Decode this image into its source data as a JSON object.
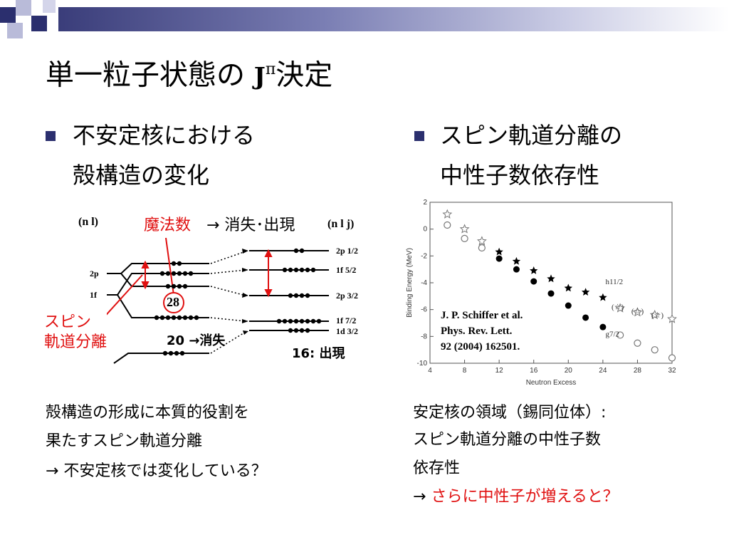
{
  "slide": {
    "title_main": "単一粒子状態の",
    "title_j": "J",
    "title_pi": "π",
    "title_tail": "決定"
  },
  "left": {
    "bullet_line1": "不安定核における",
    "bullet_line2": "殻構造の変化",
    "body_line1": "殻構造の形成に本質的役割を",
    "body_line2": "果たすスピン軌道分離",
    "body_line3": "→ 不安定核では変化している？"
  },
  "right": {
    "bullet_line1": "スピン軌道分離の",
    "bullet_line2": "中性子数依存性",
    "body_line1": "安定核の領域（錫同位体）:",
    "body_line2": "スピン軌道分離の中性子数",
    "body_line3": "依存性",
    "body_line4_arrow": "→ ",
    "body_line4_red": "さらに中性子が増えると？"
  },
  "diagram": {
    "nl_label": "(n l)",
    "nlj_label": "(n l j)",
    "magic_label": "魔法数",
    "magic_rest": "→ 消失･出現",
    "spin_orbit_label_1": "スピン",
    "spin_orbit_label_2": "軌道分離",
    "left_levels": [
      "2p",
      "1f"
    ],
    "right_levels": [
      "2p 1/2",
      "1f 5/2",
      "2p 3/2",
      "1f 7/2",
      "1d 3/2"
    ],
    "magic28": "28",
    "magic20": "20 →消失",
    "magic16": "16: 出現"
  },
  "reference": {
    "line1": "J. P. Schiffer et al.",
    "line2": "Phys. Rev. Lett.",
    "line3": "92 (2004) 162501."
  },
  "chart_data": {
    "type": "scatter",
    "xlabel": "Neutron Excess",
    "ylabel": "Binding Energy (MeV)",
    "xlim": [
      4,
      32
    ],
    "ylim": [
      -10,
      2
    ],
    "xticks": [
      4,
      8,
      12,
      16,
      20,
      24,
      28,
      32
    ],
    "yticks": [
      2,
      0,
      -2,
      -4,
      -6,
      -8,
      -10
    ],
    "series": [
      {
        "name": "h11/2",
        "marker": "star-filled",
        "x": [
          12,
          14,
          16,
          18,
          20,
          22,
          24
        ],
        "y": [
          -1.7,
          -2.4,
          -3.1,
          -3.7,
          -4.4,
          -4.7,
          -5.1
        ]
      },
      {
        "name": "h11/2",
        "marker": "star-open",
        "x": [
          6,
          8,
          10
        ],
        "y": [
          1.1,
          0.0,
          -0.9
        ]
      },
      {
        "name": "(☆)",
        "marker": "star-open",
        "x": [
          26,
          28,
          30,
          32
        ],
        "y": [
          -5.9,
          -6.2,
          -6.4,
          -6.7
        ]
      },
      {
        "name": "g7/2",
        "marker": "circle-filled",
        "x": [
          12,
          14,
          16,
          18,
          20,
          22,
          24
        ],
        "y": [
          -2.2,
          -3.0,
          -3.9,
          -4.8,
          -5.7,
          -6.6,
          -7.3
        ]
      },
      {
        "name": "g7/2",
        "marker": "circle-open",
        "x": [
          6,
          8,
          10
        ],
        "y": [
          0.3,
          -0.7,
          -1.4
        ]
      },
      {
        "name": "g7/2",
        "marker": "circle-open",
        "x": [
          26,
          28,
          30,
          32
        ],
        "y": [
          -7.9,
          -8.5,
          -9.0,
          -9.6
        ]
      }
    ],
    "annotations": [
      {
        "text": "h11/2",
        "x": 24.3,
        "y": -4.1
      },
      {
        "text": "(☆)",
        "x": 25.0,
        "y": -6.0
      },
      {
        "text": "(☆)",
        "x": 27.3,
        "y": -6.3
      },
      {
        "text": "(☆)",
        "x": 29.6,
        "y": -6.6
      },
      {
        "text": "g7/2",
        "x": 24.3,
        "y": -8.0
      }
    ]
  }
}
